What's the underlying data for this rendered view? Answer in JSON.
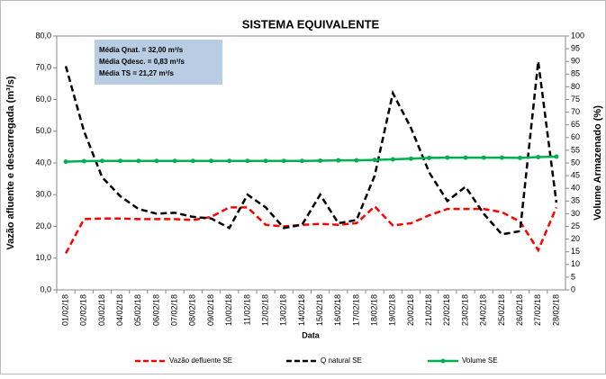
{
  "chart_data": {
    "type": "line",
    "title": "SISTEMA EQUIVALENTE",
    "x_label": "Data",
    "y_label": "Vazão afluente e descarregada (m³/s)",
    "y2_label": "Volume Armazenado (%)",
    "annotations": [
      "Média Qnat. = 32,00 m³/s",
      "Média Qdesc. = 0,83 m³/s",
      "Média TS = 21,27 m³/s"
    ],
    "categories": [
      "01/02/18",
      "02/02/18",
      "03/02/18",
      "04/02/18",
      "05/02/18",
      "06/02/18",
      "07/02/18",
      "08/02/18",
      "09/02/18",
      "10/02/18",
      "11/02/18",
      "12/02/18",
      "13/02/18",
      "14/02/18",
      "15/02/18",
      "16/02/18",
      "17/02/18",
      "18/02/18",
      "19/02/18",
      "20/02/18",
      "21/02/18",
      "22/02/18",
      "23/02/18",
      "24/02/18",
      "25/02/18",
      "26/02/18",
      "27/02/18",
      "28/02/18"
    ],
    "series": [
      {
        "name": "Vazão defluente SE",
        "color": "#ff0000",
        "dashed": true,
        "axis": "y",
        "values": [
          11.5,
          22.3,
          22.5,
          22.5,
          22.3,
          22.3,
          22.3,
          22,
          23,
          26,
          26,
          20.5,
          20,
          20.5,
          20.8,
          20.5,
          21,
          26.3,
          20.3,
          21,
          23.5,
          25.5,
          25.5,
          25.5,
          24.5,
          21.5,
          12.5,
          26
        ]
      },
      {
        "name": "Q natural SE",
        "color": "#000000",
        "dashed": true,
        "axis": "y",
        "values": [
          70.5,
          50,
          35.5,
          29.5,
          25.5,
          24,
          24.3,
          23,
          22.5,
          19.5,
          30,
          26,
          19.5,
          20.5,
          30,
          21,
          22,
          36,
          62,
          51,
          37,
          28,
          32.5,
          24,
          17.5,
          18.5,
          72,
          27.5
        ]
      },
      {
        "name": "Volume SE",
        "color": "#00b050",
        "dashed": false,
        "markers": true,
        "axis": "y2",
        "values": [
          50.5,
          50.7,
          50.8,
          50.8,
          50.8,
          50.8,
          50.8,
          50.8,
          50.8,
          50.8,
          50.8,
          50.8,
          50.8,
          50.8,
          50.9,
          51,
          51,
          51.2,
          51.4,
          51.7,
          52,
          52.1,
          52.1,
          52.1,
          52.1,
          52,
          52.3,
          52.5
        ]
      }
    ],
    "ylim": [
      0,
      80
    ],
    "yticks": [
      {
        "value": 0,
        "label": "0,0"
      },
      {
        "value": 10,
        "label": "10,0"
      },
      {
        "value": 20,
        "label": "20,0"
      },
      {
        "value": 30,
        "label": "30,0"
      },
      {
        "value": 40,
        "label": "40,0"
      },
      {
        "value": 50,
        "label": "50,0"
      },
      {
        "value": 60,
        "label": "60,0"
      },
      {
        "value": 70,
        "label": "70,0"
      },
      {
        "value": 80,
        "label": "80,0"
      }
    ],
    "y2lim": [
      0,
      100
    ],
    "y2ticks": [
      0,
      5,
      10,
      15,
      20,
      25,
      30,
      35,
      40,
      45,
      50,
      55,
      60,
      65,
      70,
      75,
      80,
      85,
      90,
      95,
      100
    ],
    "legend": "bottom"
  }
}
